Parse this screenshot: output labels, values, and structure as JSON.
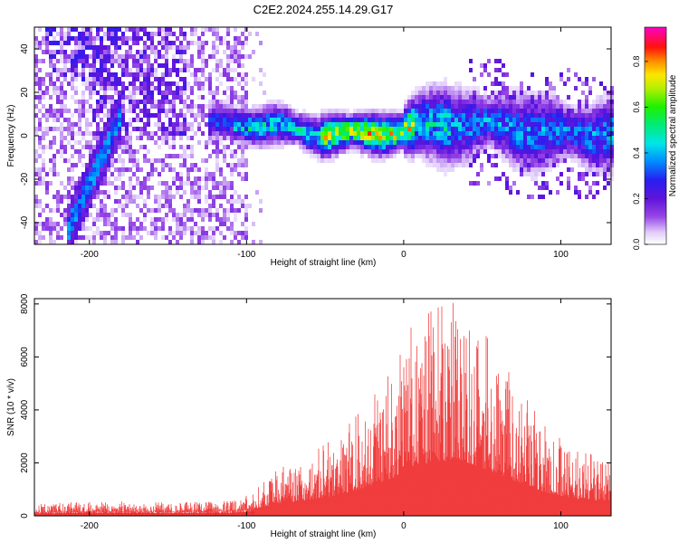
{
  "title": "C2E2.2024.255.14.29.G17",
  "colors": {
    "snr_line": "#ee2a2a",
    "axis": "#000000",
    "background": "#ffffff"
  },
  "chart_data": [
    {
      "type": "heatmap",
      "xlabel": "Height of straight line (km)",
      "ylabel": "Frequency (Hz)",
      "xlim": [
        -235,
        132
      ],
      "ylim": [
        -50,
        50
      ],
      "x_ticks": [
        -200,
        -100,
        0,
        100
      ],
      "y_ticks": [
        -40,
        -20,
        0,
        20,
        40
      ],
      "x_tick_labels": [
        "-200",
        "-100",
        "0",
        "100"
      ],
      "y_tick_labels": [
        "-40",
        "-20",
        "0",
        "20",
        "40"
      ],
      "colorbar": {
        "label": "Normalized spectral amplitude",
        "range": [
          0,
          0.95
        ],
        "ticks": [
          0,
          0.2,
          0.4,
          0.6,
          0.8
        ],
        "tick_labels": [
          "0.0",
          "0.2",
          "0.4",
          "0.6",
          "0.8"
        ],
        "colormap": "rainbow (white → purple → blue → cyan → green → yellow → red → magenta)"
      },
      "features": [
        {
          "name": "main echo band",
          "x_range": [
            -125,
            132
          ],
          "freq_center": 2,
          "peak_amplitude": 0.9,
          "peak_x_range": [
            -55,
            5
          ]
        },
        {
          "name": "diagonal streak",
          "x_start": -215,
          "x_end": -180,
          "freq_start": -45,
          "freq_end": 10
        },
        {
          "name": "low amplitude noise region",
          "x_range": [
            -235,
            -100
          ]
        }
      ]
    },
    {
      "type": "line",
      "xlabel": "Height of straight line (km)",
      "ylabel": "SNR (10 * v/v)",
      "xlim": [
        -235,
        132
      ],
      "ylim": [
        0,
        8200
      ],
      "x_ticks": [
        -200,
        -100,
        0,
        100
      ],
      "y_ticks": [
        0,
        2000,
        4000,
        6000,
        8000
      ],
      "x_tick_labels": [
        "-200",
        "-100",
        "0",
        "100"
      ],
      "y_tick_labels": [
        "0",
        "2000",
        "4000",
        "6000",
        "8000"
      ],
      "series": [
        {
          "color": "#ee2a2a",
          "envelope": [
            {
              "x": -235,
              "y": 350
            },
            {
              "x": -200,
              "y": 450
            },
            {
              "x": -150,
              "y": 400
            },
            {
              "x": -110,
              "y": 450
            },
            {
              "x": -95,
              "y": 700
            },
            {
              "x": -80,
              "y": 1300
            },
            {
              "x": -60,
              "y": 1700
            },
            {
              "x": -40,
              "y": 2300
            },
            {
              "x": -20,
              "y": 3300
            },
            {
              "x": -5,
              "y": 4200
            },
            {
              "x": 5,
              "y": 5300
            },
            {
              "x": 20,
              "y": 5800
            },
            {
              "x": 35,
              "y": 6000
            },
            {
              "x": 50,
              "y": 5200
            },
            {
              "x": 70,
              "y": 3800
            },
            {
              "x": 90,
              "y": 2500
            },
            {
              "x": 110,
              "y": 1800
            },
            {
              "x": 132,
              "y": 1600
            }
          ]
        }
      ]
    }
  ]
}
